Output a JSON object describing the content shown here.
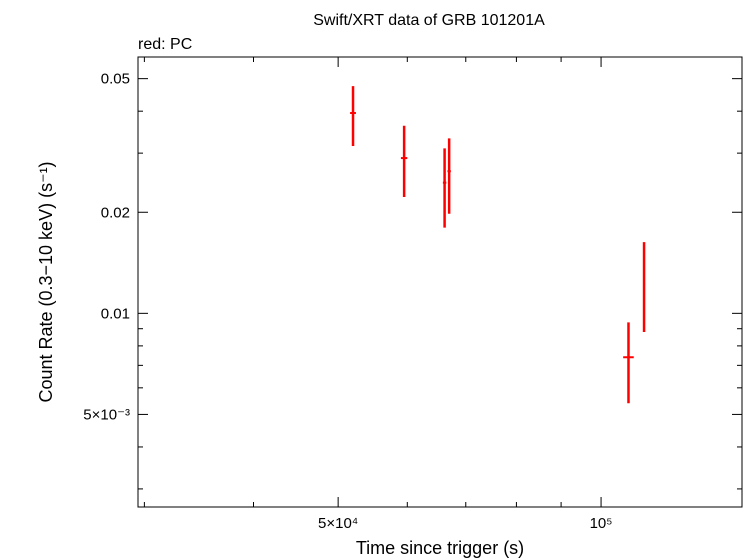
{
  "chart_data": {
    "type": "scatter",
    "title": "Swift/XRT data of GRB 101201A",
    "subtitle": "red: PC",
    "xlabel": "Time since trigger (s)",
    "ylabel": "Count Rate (0.3−10 keV) (s⁻¹)",
    "xscale": "log",
    "yscale": "log",
    "xlim": [
      29500,
      145000
    ],
    "ylim": [
      0.00265,
      0.058
    ],
    "x_tick_labels": [
      {
        "value": 50000,
        "label": "5×10⁴"
      },
      {
        "value": 100000,
        "label": "10⁵"
      }
    ],
    "y_tick_labels": [
      {
        "value": 0.05,
        "label": "0.05"
      },
      {
        "value": 0.02,
        "label": "0.02"
      },
      {
        "value": 0.01,
        "label": "0.01"
      },
      {
        "value": 0.005,
        "label": "5×10⁻³"
      }
    ],
    "grid": false,
    "series": [
      {
        "color": "#ff0000",
        "points": [
          {
            "x": 52000,
            "y": 0.0395,
            "xerr": [
              400,
              400
            ],
            "yerr_low": 0.0315,
            "yerr_high": 0.0475
          },
          {
            "x": 59500,
            "y": 0.029,
            "xerr": [
              500,
              500
            ],
            "yerr_low": 0.0222,
            "yerr_high": 0.0362
          },
          {
            "x": 66200,
            "y": 0.0245,
            "xerr": [
              300,
              300
            ],
            "yerr_low": 0.018,
            "yerr_high": 0.031
          },
          {
            "x": 67000,
            "y": 0.0265,
            "xerr": [
              300,
              300
            ],
            "yerr_low": 0.0198,
            "yerr_high": 0.0332
          },
          {
            "x": 107500,
            "y": 0.0074,
            "xerr": [
              1500,
              1500
            ],
            "yerr_low": 0.0054,
            "yerr_high": 0.0094
          },
          {
            "x": 112000,
            "y": 0.0122,
            "xerr": [
              300,
              300
            ],
            "yerr_low": 0.0088,
            "yerr_high": 0.0163
          }
        ]
      }
    ]
  }
}
